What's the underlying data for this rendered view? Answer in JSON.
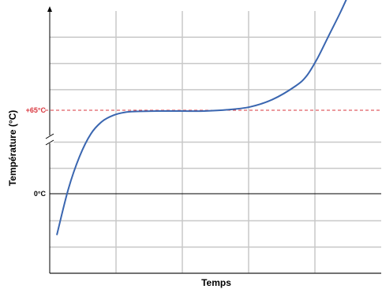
{
  "chart_data": {
    "type": "line",
    "xlabel": "Temps",
    "ylabel": "Température (°C)",
    "grid": true,
    "y_axis_break": true,
    "x_ticks_labeled": false,
    "markers": [
      {
        "label": "+65°C",
        "value": 65,
        "style": "dashed",
        "color": "#d9363e"
      },
      {
        "label": "0°C",
        "value": 0,
        "style": "solid",
        "color": "#000000"
      }
    ],
    "series": [
      {
        "color": "#3a66b0",
        "points": [
          [
            0.0,
            -1.0
          ],
          [
            0.05,
            0.1
          ],
          [
            0.1,
            0.9
          ],
          [
            0.15,
            1.45
          ],
          [
            0.2,
            1.75
          ],
          [
            0.25,
            1.9
          ],
          [
            0.3,
            1.97
          ],
          [
            0.35,
            1.99
          ],
          [
            0.45,
            2.0
          ],
          [
            0.55,
            2.0
          ],
          [
            0.65,
            2.0
          ],
          [
            0.75,
            2.03
          ],
          [
            0.85,
            2.1
          ],
          [
            0.95,
            2.28
          ],
          [
            1.05,
            2.6
          ],
          [
            1.1,
            2.85
          ],
          [
            1.15,
            3.3
          ],
          [
            1.2,
            3.85
          ],
          [
            1.25,
            4.4
          ],
          [
            1.3,
            5.0
          ]
        ]
      }
    ]
  }
}
